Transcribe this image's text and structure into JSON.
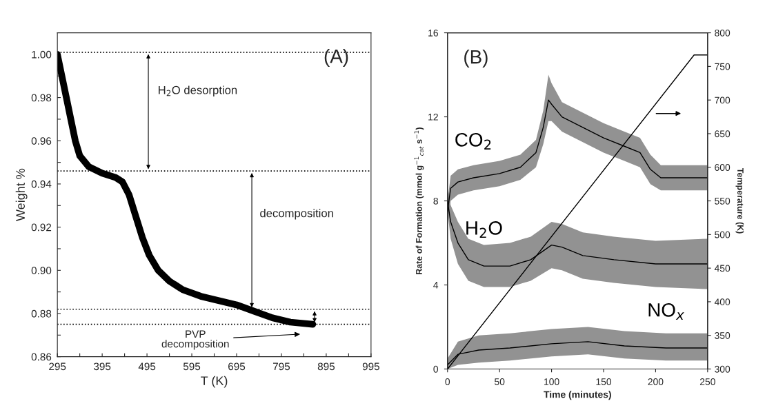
{
  "chart_data": [
    {
      "type": "line",
      "xlabel": "T (K)",
      "ylabel": "Weight %",
      "x": [
        295,
        305,
        315,
        325,
        335,
        345,
        365,
        395,
        425,
        440,
        455,
        470,
        485,
        500,
        520,
        545,
        575,
        615,
        655,
        695,
        735,
        775,
        815,
        865
      ],
      "series": [
        {
          "color": "#000000",
          "values": [
            1.0,
            0.99,
            0.98,
            0.97,
            0.96,
            0.953,
            0.948,
            0.945,
            0.943,
            0.941,
            0.935,
            0.925,
            0.915,
            0.907,
            0.9,
            0.895,
            0.891,
            0.888,
            0.886,
            0.884,
            0.881,
            0.878,
            0.876,
            0.875
          ]
        }
      ],
      "xlim": [
        295,
        995
      ],
      "ylim": [
        0.86,
        1.01
      ],
      "xticks": [
        295,
        {
          "value": 345,
          "label": null
        },
        395,
        {
          "value": 445,
          "label": null
        },
        495,
        {
          "value": 545,
          "label": null
        },
        595,
        {
          "value": 645,
          "label": null
        },
        695,
        {
          "value": 745,
          "label": null
        },
        795,
        {
          "value": 845,
          "label": null
        },
        895,
        {
          "value": 945,
          "label": null
        },
        995
      ],
      "yticks": [
        {
          "value": 0.86,
          "label": "0.86"
        },
        {
          "value": 0.87,
          "label": null
        },
        {
          "value": 0.88,
          "label": "0.88"
        },
        {
          "value": 0.89,
          "label": null
        },
        {
          "value": 0.9,
          "label": "0.90"
        },
        {
          "value": 0.91,
          "label": null
        },
        {
          "value": 0.92,
          "label": "0.92"
        },
        {
          "value": 0.93,
          "label": null
        },
        {
          "value": 0.94,
          "label": "0.94"
        },
        {
          "value": 0.95,
          "label": null
        },
        {
          "value": 0.96,
          "label": "0.96"
        },
        {
          "value": 0.97,
          "label": null
        },
        {
          "value": 0.98,
          "label": "0.98"
        },
        {
          "value": 0.99,
          "label": null
        },
        {
          "value": 1.0,
          "label": "1.00"
        }
      ],
      "ref_lines": [
        {
          "axis": "y",
          "value": 1.001,
          "line_style": "dotted",
          "color": "#000000"
        },
        {
          "axis": "y",
          "value": 0.946,
          "line_style": "dotted",
          "color": "#000000"
        },
        {
          "axis": "y",
          "value": 0.882,
          "line_style": "dotted",
          "color": "#000000"
        },
        {
          "axis": "y",
          "value": 0.875,
          "line_style": "dotted",
          "color": "#000000"
        }
      ],
      "annotations": [
        "(A)",
        "H$_{2}$O desorption",
        "decomposition",
        "PVP\ndecomposition"
      ],
      "grid": false
    },
    {
      "type": "line",
      "xlabel": "Time (minutes)",
      "ylabel": "Rate of Formation (mmol g$^{−1}$$_{cat}$ s$^{−1}$)",
      "y2label": "Temperature (K)",
      "xlim": [
        0,
        250
      ],
      "ylim": [
        0,
        16
      ],
      "y2lim": [
        300,
        800
      ],
      "xticks": [
        0,
        50,
        100,
        150,
        200,
        250
      ],
      "yticks": [
        0,
        4,
        8,
        12,
        16
      ],
      "y2ticks": [
        300,
        350,
        400,
        450,
        500,
        550,
        600,
        650,
        700,
        750,
        800
      ],
      "series": [
        {
          "name": "CO$_{2}$",
          "color": "#000000",
          "x": [
            0,
            3,
            10,
            25,
            50,
            70,
            85,
            92,
            97,
            100,
            110,
            130,
            150,
            170,
            185,
            195,
            205,
            225,
            250
          ],
          "values": [
            7.5,
            8.6,
            8.9,
            9.1,
            9.3,
            9.6,
            10.3,
            11.5,
            12.8,
            12.6,
            12.0,
            11.5,
            11.0,
            10.6,
            10.3,
            9.5,
            9.1,
            9.1,
            9.1
          ],
          "lower": [
            7.0,
            8.0,
            8.3,
            8.5,
            8.7,
            9.0,
            9.6,
            10.7,
            11.8,
            11.8,
            11.3,
            10.8,
            10.3,
            9.9,
            9.6,
            8.8,
            8.5,
            8.5,
            8.5
          ],
          "upper": [
            8.0,
            9.2,
            9.5,
            9.7,
            9.9,
            10.2,
            10.9,
            12.3,
            14.0,
            13.6,
            12.7,
            12.2,
            11.7,
            11.3,
            11.0,
            10.2,
            9.7,
            9.7,
            9.7
          ]
        },
        {
          "name": "H$_{2}$O",
          "color": "#000000",
          "x": [
            0,
            3,
            10,
            20,
            35,
            60,
            80,
            100,
            110,
            130,
            160,
            200,
            250
          ],
          "values": [
            8.0,
            7.0,
            6.0,
            5.2,
            4.9,
            4.9,
            5.2,
            5.9,
            5.8,
            5.4,
            5.2,
            5.0,
            5.0
          ],
          "lower": [
            7.5,
            6.2,
            5.0,
            4.2,
            3.9,
            3.9,
            4.2,
            4.8,
            4.7,
            4.3,
            4.1,
            3.9,
            3.8
          ],
          "upper": [
            8.5,
            7.8,
            7.0,
            6.2,
            5.9,
            6.0,
            6.3,
            7.0,
            6.9,
            6.5,
            6.3,
            6.1,
            6.2
          ]
        },
        {
          "name": "NO$_{x}$",
          "color": "#000000",
          "x": [
            0,
            10,
            30,
            60,
            100,
            135,
            170,
            210,
            250
          ],
          "values": [
            0.2,
            0.7,
            0.9,
            1.0,
            1.2,
            1.3,
            1.1,
            1.0,
            1.0
          ],
          "lower": [
            0.0,
            0.2,
            0.3,
            0.4,
            0.6,
            0.7,
            0.5,
            0.4,
            0.4
          ],
          "upper": [
            0.5,
            1.3,
            1.6,
            1.7,
            1.9,
            2.0,
            1.8,
            1.7,
            1.7
          ]
        },
        {
          "color": "#000000",
          "axis": "y2",
          "x": [
            0,
            237,
            250
          ],
          "values": [
            300,
            767,
            767
          ]
        }
      ],
      "annotations": [
        "(B)"
      ],
      "grid": false
    }
  ]
}
